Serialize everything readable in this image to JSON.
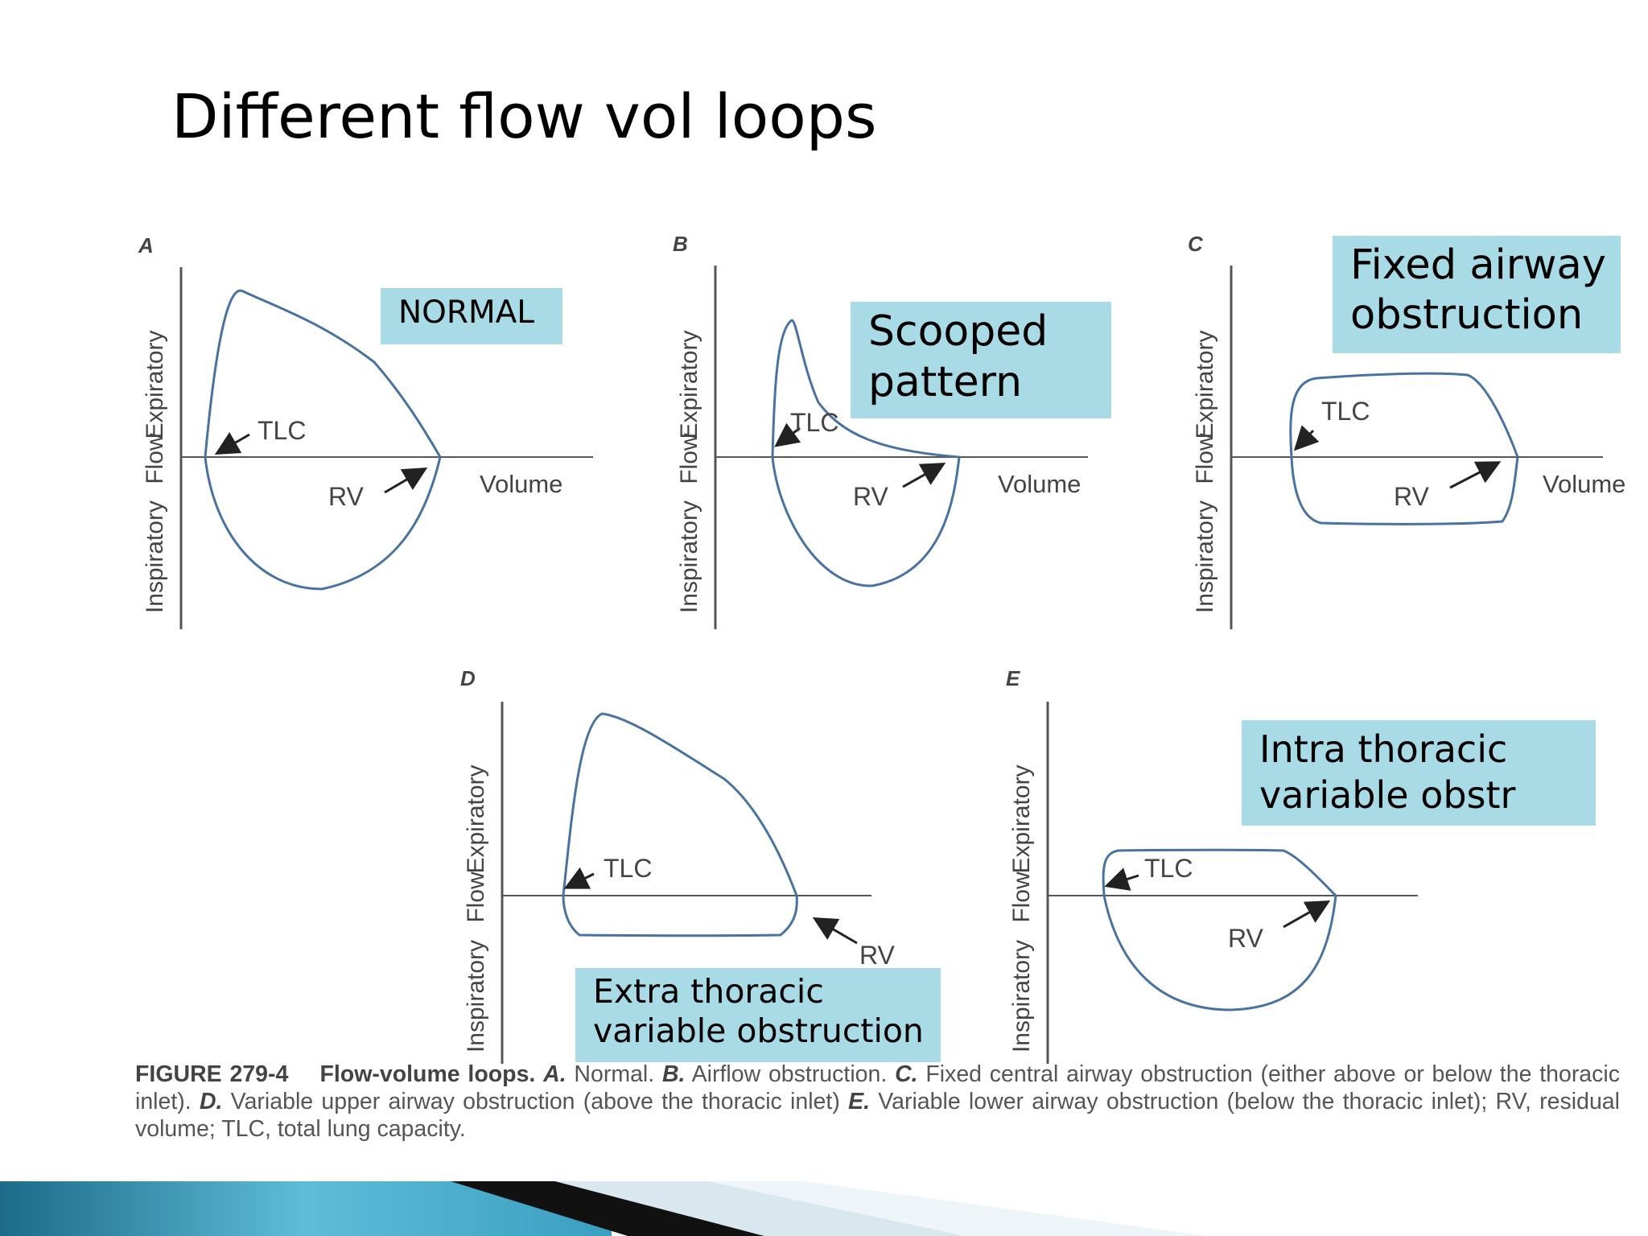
{
  "title": "Different flow vol loops",
  "panels": [
    {
      "letter": "A",
      "y_top": "Expiratory",
      "y_mid": "Flow",
      "y_bottom": "Inspiratory",
      "tlc": "TLC",
      "rv": "RV",
      "volume": "Volume"
    },
    {
      "letter": "B",
      "y_top": "Expiratory",
      "y_mid": "Flow",
      "y_bottom": "Inspiratory",
      "tlc": "TLC",
      "rv": "RV",
      "volume": "Volume"
    },
    {
      "letter": "C",
      "y_top": "Expiratory",
      "y_mid": "Flow",
      "y_bottom": "Inspiratory",
      "tlc": "TLC",
      "rv": "RV",
      "volume": "Volume"
    },
    {
      "letter": "D",
      "y_top": "Expiratory",
      "y_mid": "Flow",
      "y_bottom": "Inspiratory",
      "tlc": "TLC",
      "rv": "RV"
    },
    {
      "letter": "E",
      "y_top": "Expiratory",
      "y_mid": "Flow",
      "y_bottom": "Inspiratory",
      "tlc": "TLC",
      "rv": "RV"
    }
  ],
  "labels": {
    "normal": [
      "NORMAL"
    ],
    "scooped": [
      "Scooped",
      "pattern"
    ],
    "fixed": [
      "Fixed airway",
      "obstruction"
    ],
    "extra": [
      "Extra thoracic",
      "variable obstruction"
    ],
    "intra": [
      "Intra thoracic",
      "variable obstr"
    ]
  },
  "caption": {
    "figure": "FIGURE 279-4",
    "heading": "Flow-volume loops.",
    "a_key": "A.",
    "a_text": " Normal. ",
    "b_key": "B.",
    "b_text": " Airflow obstruction. ",
    "c_key": "C.",
    "c_text": " Fixed central airway obstruction (either above or below the thoracic inlet). ",
    "d_key": "D.",
    "d_text": " Variable upper airway obstruction (above the thoracic inlet) ",
    "e_key": "E.",
    "e_text": " Variable lower airway obstruction (below the thoracic inlet); RV, residual volume; TLC, total lung capacity."
  },
  "colors": {
    "loop": "#4a72a0",
    "label_bg": "#a8dbe6",
    "axis": "#555555"
  }
}
